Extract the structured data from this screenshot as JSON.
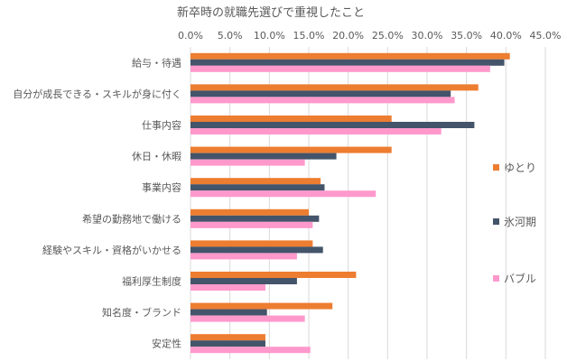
{
  "chart_data": {
    "type": "bar",
    "orientation": "horizontal",
    "title": "新卒時の就職先選びで重視したこと",
    "xlim": [
      0,
      45
    ],
    "x_ticks": [
      "0.0%",
      "5.0%",
      "10.0%",
      "15.0%",
      "20.0%",
      "25.0%",
      "30.0%",
      "35.0%",
      "40.0%",
      "45.0%"
    ],
    "x_tick_values": [
      0,
      5,
      10,
      15,
      20,
      25,
      30,
      35,
      40,
      45
    ],
    "grid": true,
    "legend_position": "right",
    "categories": [
      "給与・待遇",
      "自分が成長できる・スキルが身に付く",
      "仕事内容",
      "休日・休暇",
      "事業内容",
      "希望の勤務地で働ける",
      "経験やスキル・資格がいかせる",
      "福利厚生制度",
      "知名度・ブランド",
      "安定性"
    ],
    "series": [
      {
        "name": "ゆとり",
        "color": "#ED7D31",
        "values": [
          40.5,
          36.5,
          25.5,
          25.5,
          16.5,
          15.0,
          15.5,
          21.0,
          18.0,
          9.5
        ]
      },
      {
        "name": "氷河期",
        "color": "#44546A",
        "values": [
          39.8,
          33.0,
          36.0,
          18.5,
          17.0,
          16.3,
          16.8,
          13.5,
          9.7,
          9.5
        ]
      },
      {
        "name": "バブル",
        "color": "#FF99CC",
        "values": [
          38.0,
          33.5,
          31.8,
          14.5,
          23.5,
          15.5,
          13.5,
          9.5,
          14.5,
          15.2
        ]
      }
    ]
  }
}
